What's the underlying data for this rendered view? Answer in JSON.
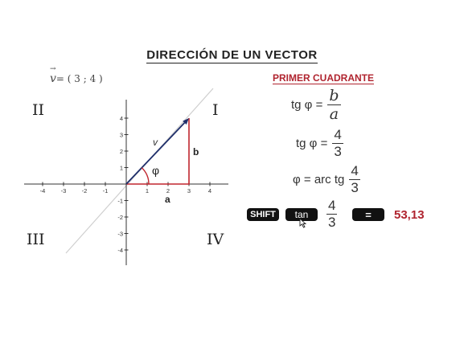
{
  "title": "DIRECCIÓN DE UN VECTOR",
  "vector_definition": {
    "symbol": "v",
    "text": "= ( 3 ; 4 )"
  },
  "quadrants": {
    "q1": "I",
    "q2": "II",
    "q3": "III",
    "q4": "IV"
  },
  "subtitle": "PRIMER CUADRANTE",
  "diagram": {
    "x_ticks": [
      "-4",
      "-3",
      "-2",
      "-1",
      "1",
      "2",
      "3",
      "4"
    ],
    "y_ticks": [
      "4",
      "3",
      "2",
      "1",
      "-1",
      "-2",
      "-3",
      "-4"
    ],
    "vector_label": "v",
    "angle_label": "φ",
    "side_a_label": "a",
    "side_b_label": "b",
    "vector_end": [
      3,
      4
    ],
    "colors": {
      "vector": "#1f2f6b",
      "sides": "#c0262e",
      "axes": "#333333",
      "diagonal": "#cfcfcf"
    }
  },
  "equations": {
    "eq1_lhs": "tg φ =",
    "eq1_num": "b",
    "eq1_den": "a",
    "eq2_lhs": "tg φ =",
    "eq2_num": "4",
    "eq2_den": "3",
    "eq3_lhs": "φ = arc tg",
    "eq3_num": "4",
    "eq3_den": "3"
  },
  "calculator": {
    "shift_label": "SHIFT",
    "tan_label": "tan",
    "frac_num": "4",
    "frac_den": "3",
    "equals_label": "=",
    "result": "53,13",
    "result_color": "#b0242f"
  }
}
